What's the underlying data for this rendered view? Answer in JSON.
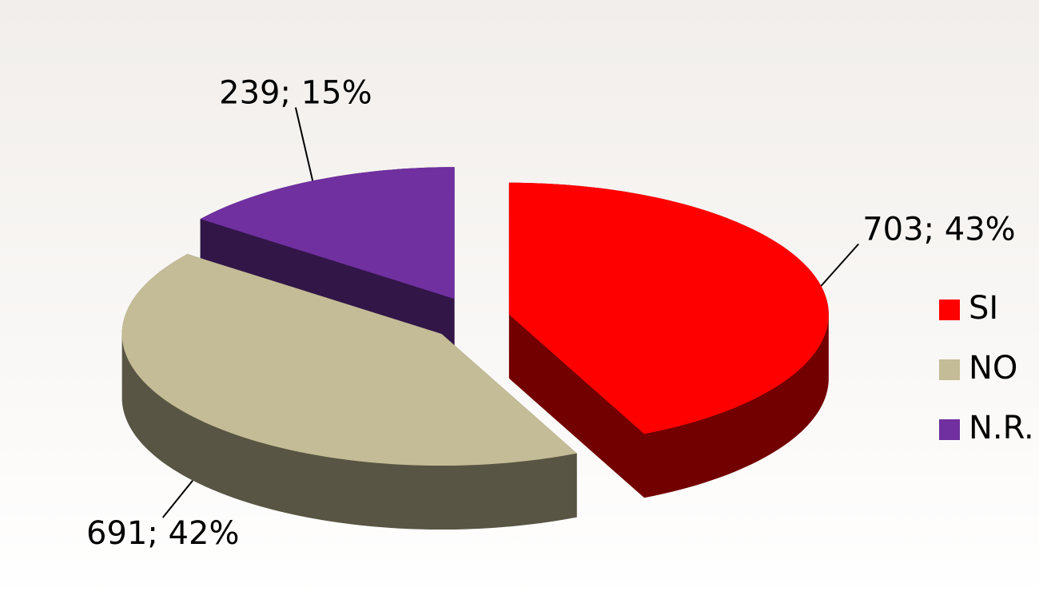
{
  "chart_data": {
    "type": "pie3d",
    "categories": [
      "SI",
      "NO",
      "N.R."
    ],
    "values": [
      703,
      691,
      239
    ],
    "value_labels": [
      "703; 43%",
      "691; 42%",
      "239; 15%"
    ],
    "colors": [
      "#ff0000",
      "#c4bc96",
      "#7030a0"
    ],
    "legend": "right"
  }
}
